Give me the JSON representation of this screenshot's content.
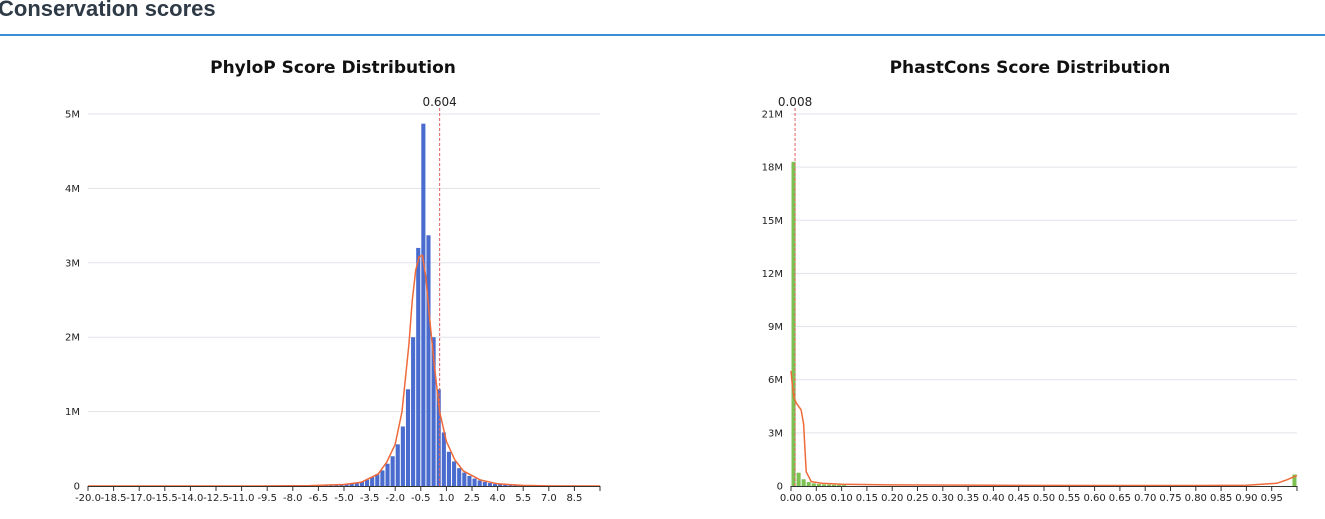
{
  "section": {
    "title": "Conservation scores"
  },
  "chart_data": [
    {
      "type": "bar",
      "title": "PhyloP Score Distribution",
      "xlabel": "",
      "ylabel": "",
      "bar_color": "#4a6ccf",
      "curve_color": "#ee6a3a",
      "marker_color": "#e06060",
      "marker_value": 0.604,
      "marker_label": "0.604",
      "xlim": [
        -20.0,
        10.0
      ],
      "ylim": [
        0,
        5000000
      ],
      "x_ticks": [
        "-20.0",
        "-18.5",
        "-17.0",
        "-15.5",
        "-14.0",
        "-12.5",
        "-11.0",
        "-9.5",
        "-8.0",
        "-6.5",
        "-5.0",
        "-3.5",
        "-2.0",
        "-0.5",
        "1.0",
        "2.5",
        "4.0",
        "5.5",
        "7.0",
        "8.5"
      ],
      "y_ticks": [
        "0",
        "1M",
        "2M",
        "3M",
        "4M",
        "5M"
      ],
      "bin_width": 0.3,
      "bins": [
        {
          "x": -6.5,
          "value": 5000
        },
        {
          "x": -6.2,
          "value": 7000
        },
        {
          "x": -5.9,
          "value": 9000
        },
        {
          "x": -5.6,
          "value": 12000
        },
        {
          "x": -5.3,
          "value": 15000
        },
        {
          "x": -5.0,
          "value": 20000
        },
        {
          "x": -4.7,
          "value": 28000
        },
        {
          "x": -4.4,
          "value": 40000
        },
        {
          "x": -4.1,
          "value": 60000
        },
        {
          "x": -3.8,
          "value": 85000
        },
        {
          "x": -3.5,
          "value": 120000
        },
        {
          "x": -3.2,
          "value": 160000
        },
        {
          "x": -2.9,
          "value": 210000
        },
        {
          "x": -2.6,
          "value": 300000
        },
        {
          "x": -2.3,
          "value": 400000
        },
        {
          "x": -2.0,
          "value": 560000
        },
        {
          "x": -1.7,
          "value": 800000
        },
        {
          "x": -1.4,
          "value": 1300000
        },
        {
          "x": -1.1,
          "value": 2000000
        },
        {
          "x": -0.8,
          "value": 3200000
        },
        {
          "x": -0.5,
          "value": 4870000
        },
        {
          "x": -0.2,
          "value": 3370000
        },
        {
          "x": 0.1,
          "value": 2000000
        },
        {
          "x": 0.4,
          "value": 1300000
        },
        {
          "x": 0.7,
          "value": 720000
        },
        {
          "x": 1.0,
          "value": 460000
        },
        {
          "x": 1.3,
          "value": 330000
        },
        {
          "x": 1.6,
          "value": 240000
        },
        {
          "x": 1.9,
          "value": 180000
        },
        {
          "x": 2.2,
          "value": 135000
        },
        {
          "x": 2.5,
          "value": 100000
        },
        {
          "x": 2.8,
          "value": 75000
        },
        {
          "x": 3.1,
          "value": 55000
        },
        {
          "x": 3.4,
          "value": 40000
        },
        {
          "x": 3.7,
          "value": 30000
        },
        {
          "x": 4.0,
          "value": 22000
        },
        {
          "x": 4.3,
          "value": 16000
        },
        {
          "x": 4.6,
          "value": 12000
        },
        {
          "x": 4.9,
          "value": 9000
        },
        {
          "x": 5.2,
          "value": 7000
        }
      ],
      "curve": [
        [
          -20.0,
          0
        ],
        [
          -10.0,
          0
        ],
        [
          -7.0,
          5000
        ],
        [
          -5.0,
          20000
        ],
        [
          -4.0,
          50000
        ],
        [
          -3.0,
          160000
        ],
        [
          -2.5,
          320000
        ],
        [
          -2.0,
          560000
        ],
        [
          -1.6,
          1000000
        ],
        [
          -1.2,
          1900000
        ],
        [
          -1.0,
          2500000
        ],
        [
          -0.8,
          2900000
        ],
        [
          -0.6,
          3080000
        ],
        [
          -0.4,
          3100000
        ],
        [
          -0.2,
          2800000
        ],
        [
          0.0,
          2300000
        ],
        [
          0.3,
          1600000
        ],
        [
          0.6,
          1000000
        ],
        [
          1.0,
          600000
        ],
        [
          1.5,
          350000
        ],
        [
          2.0,
          200000
        ],
        [
          3.0,
          80000
        ],
        [
          4.0,
          30000
        ],
        [
          5.5,
          8000
        ],
        [
          7.0,
          2000
        ],
        [
          10.0,
          0
        ]
      ]
    },
    {
      "type": "bar",
      "title": "PhastCons Score Distribution",
      "xlabel": "",
      "ylabel": "",
      "bar_color": "#7cc152",
      "curve_color": "#ee6a3a",
      "marker_color": "#e06060",
      "marker_value": 0.008,
      "marker_label": "0.008",
      "xlim": [
        0.0,
        1.0
      ],
      "ylim": [
        0,
        21000000
      ],
      "x_ticks": [
        "0.00",
        "0.05",
        "0.10",
        "0.15",
        "0.20",
        "0.25",
        "0.30",
        "0.35",
        "0.40",
        "0.45",
        "0.50",
        "0.55",
        "0.60",
        "0.65",
        "0.70",
        "0.75",
        "0.80",
        "0.85",
        "0.90",
        "0.95"
      ],
      "y_ticks": [
        "0",
        "3M",
        "6M",
        "9M",
        "12M",
        "15M",
        "18M",
        "21M"
      ],
      "bin_width": 0.01,
      "bins": [
        {
          "x": 0.0,
          "value": 18300000
        },
        {
          "x": 0.01,
          "value": 750000
        },
        {
          "x": 0.02,
          "value": 380000
        },
        {
          "x": 0.03,
          "value": 220000
        },
        {
          "x": 0.04,
          "value": 150000
        },
        {
          "x": 0.05,
          "value": 110000
        },
        {
          "x": 0.06,
          "value": 90000
        },
        {
          "x": 0.07,
          "value": 75000
        },
        {
          "x": 0.08,
          "value": 65000
        },
        {
          "x": 0.09,
          "value": 55000
        },
        {
          "x": 0.1,
          "value": 50000
        },
        {
          "x": 0.99,
          "value": 650000
        }
      ],
      "curve": [
        [
          0.0,
          6500000
        ],
        [
          0.003,
          5600000
        ],
        [
          0.006,
          5000000
        ],
        [
          0.01,
          4700000
        ],
        [
          0.015,
          4500000
        ],
        [
          0.02,
          4300000
        ],
        [
          0.025,
          3500000
        ],
        [
          0.03,
          800000
        ],
        [
          0.04,
          250000
        ],
        [
          0.06,
          150000
        ],
        [
          0.1,
          100000
        ],
        [
          0.2,
          60000
        ],
        [
          0.4,
          40000
        ],
        [
          0.6,
          30000
        ],
        [
          0.8,
          30000
        ],
        [
          0.9,
          40000
        ],
        [
          0.96,
          150000
        ],
        [
          0.98,
          350000
        ],
        [
          1.0,
          600000
        ]
      ]
    }
  ]
}
